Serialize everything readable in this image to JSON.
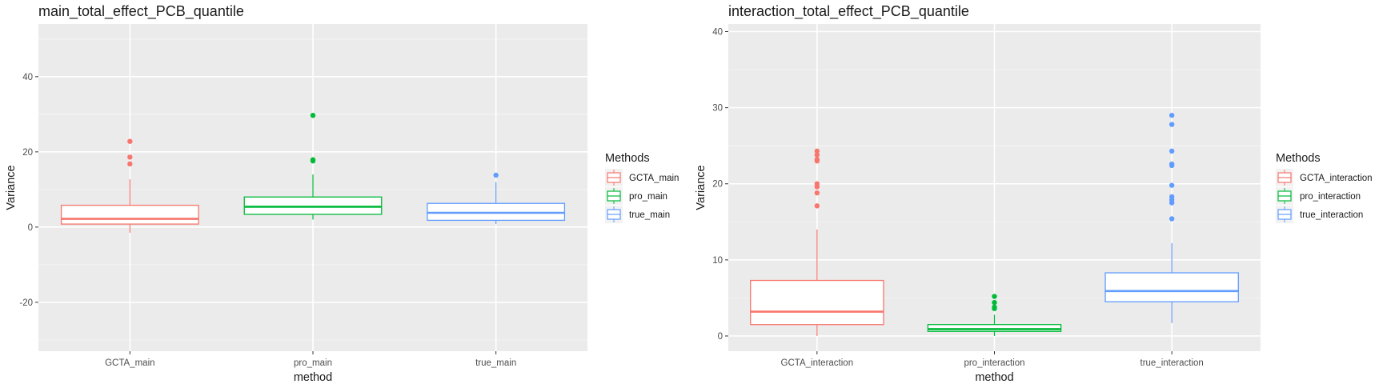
{
  "chart_data": [
    {
      "type": "boxplot",
      "title": "main_total_effect_PCB_quantile",
      "xlabel": "method",
      "ylabel": "Variance",
      "ylim": [
        -33,
        54
      ],
      "yticks": [
        -20,
        0,
        20,
        40
      ],
      "grid": true,
      "legend": {
        "title": "Methods",
        "position": "right"
      },
      "categories": [
        "GCTA_main",
        "pro_main",
        "true_main"
      ],
      "series": [
        {
          "name": "GCTA_main",
          "color": "#F8766D",
          "whisker_low": -1.5,
          "q1": 0.8,
          "median": 2.2,
          "q3": 5.8,
          "whisker_high": 12.7,
          "outliers": [
            22.8,
            18.6,
            16.8
          ]
        },
        {
          "name": "pro_main",
          "color": "#00BA38",
          "whisker_low": 2.0,
          "q1": 3.4,
          "median": 5.4,
          "q3": 8.0,
          "whisker_high": 14.0,
          "outliers": [
            29.7,
            17.9,
            17.6
          ]
        },
        {
          "name": "true_main",
          "color": "#619CFF",
          "whisker_low": 0.8,
          "q1": 1.8,
          "median": 3.8,
          "q3": 6.3,
          "whisker_high": 12.0,
          "outliers": [
            13.8
          ]
        }
      ]
    },
    {
      "type": "boxplot",
      "title": "interaction_total_effect_PCB_quantile",
      "xlabel": "method",
      "ylabel": "Variance",
      "ylim": [
        -2,
        41
      ],
      "yticks": [
        0,
        10,
        20,
        30,
        40
      ],
      "grid": true,
      "legend": {
        "title": "Methods",
        "position": "right"
      },
      "categories": [
        "GCTA_interaction",
        "pro_interaction",
        "true_interaction"
      ],
      "series": [
        {
          "name": "GCTA_interaction",
          "color": "#F8766D",
          "whisker_low": 0.0,
          "q1": 1.5,
          "median": 3.2,
          "q3": 7.3,
          "whisker_high": 14.0,
          "outliers": [
            24.3,
            23.8,
            23.2,
            23.0,
            20.0,
            19.6,
            18.8,
            17.1
          ]
        },
        {
          "name": "pro_interaction",
          "color": "#00BA38",
          "whisker_low": 0.0,
          "q1": 0.6,
          "median": 0.9,
          "q3": 1.5,
          "whisker_high": 2.8,
          "outliers": [
            5.2,
            4.4,
            3.8,
            3.6
          ]
        },
        {
          "name": "true_interaction",
          "color": "#619CFF",
          "whisker_low": 1.7,
          "q1": 4.5,
          "median": 5.9,
          "q3": 8.3,
          "whisker_high": 12.2,
          "outliers": [
            29.0,
            27.8,
            24.3,
            22.6,
            22.4,
            19.8,
            18.3,
            17.9,
            17.5,
            15.4
          ]
        }
      ]
    }
  ]
}
